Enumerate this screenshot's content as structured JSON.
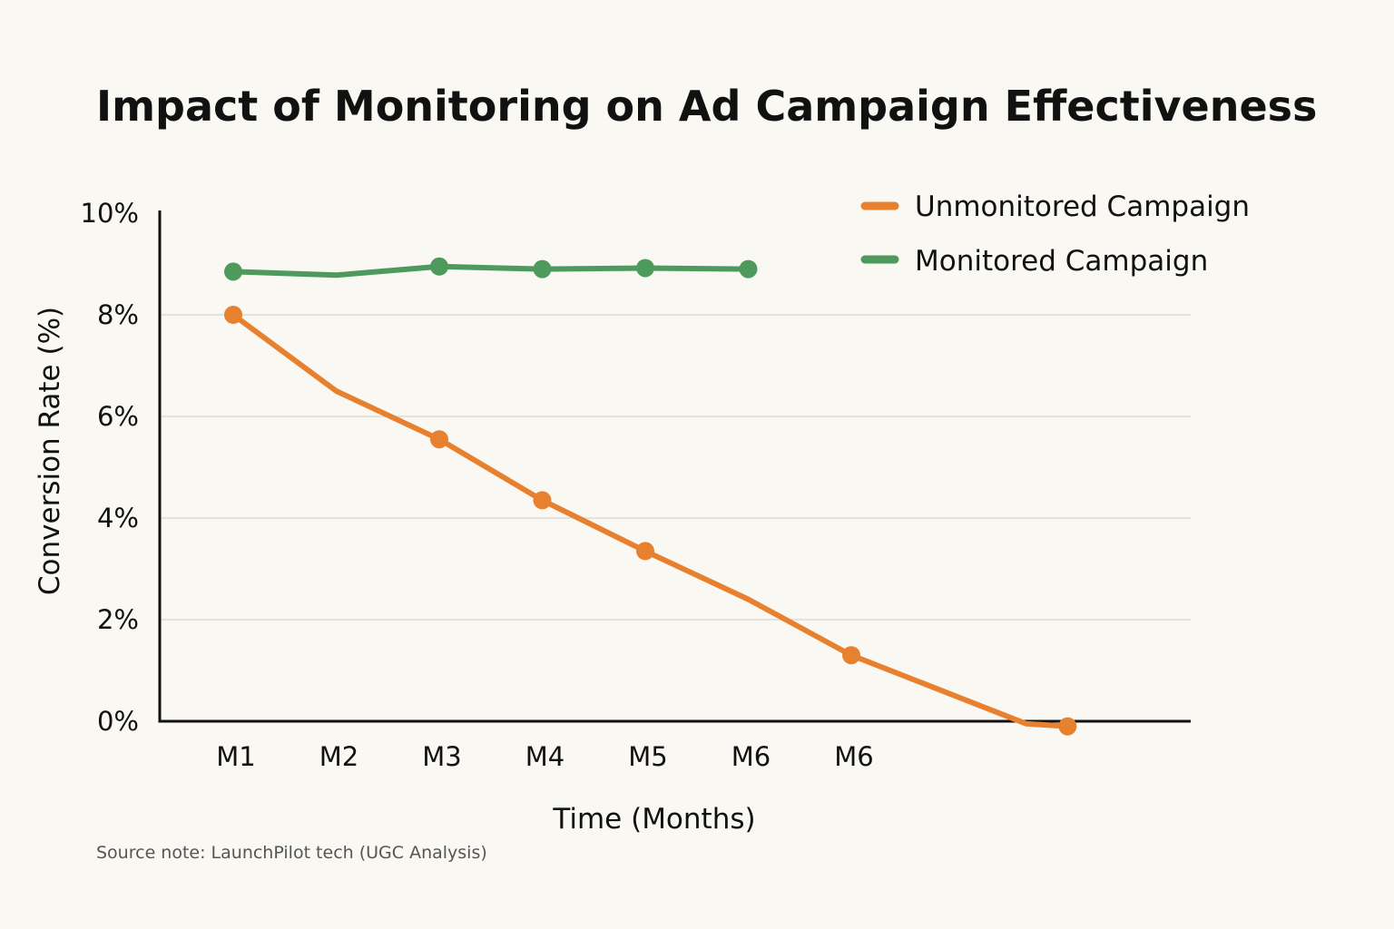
{
  "chart_data": {
    "type": "line",
    "title": "Impact of Monitoring on Ad Campaign Effectiveness",
    "xlabel": "Time (Months)",
    "ylabel": "Conversion Rate (%)",
    "ylim": [
      0,
      10
    ],
    "ytick_values": [
      0,
      2,
      4,
      6,
      8,
      10
    ],
    "ytick_labels": [
      "0%",
      "2%",
      "4%",
      "6%",
      "8%",
      "10%"
    ],
    "x_tick_labels": [
      "M1",
      "M2",
      "M3",
      "M4",
      "M5",
      "M6",
      "M6"
    ],
    "grid": true,
    "legend_position": "top-right",
    "series": [
      {
        "name": "Unmonitored Campaign",
        "color": "#e8812f",
        "points": [
          {
            "x": 1,
            "y": 8.0,
            "marker": true
          },
          {
            "x": 2,
            "y": 6.5,
            "marker": false
          },
          {
            "x": 3,
            "y": 5.55,
            "marker": true
          },
          {
            "x": 4,
            "y": 4.35,
            "marker": true
          },
          {
            "x": 5,
            "y": 3.35,
            "marker": true
          },
          {
            "x": 6,
            "y": 2.4,
            "marker": false
          },
          {
            "x": 7,
            "y": 1.3,
            "marker": true
          },
          {
            "x": 8.7,
            "y": -0.05,
            "marker": false
          },
          {
            "x": 9.1,
            "y": -0.1,
            "marker": true
          }
        ]
      },
      {
        "name": "Monitored Campaign",
        "color": "#4e9a5c",
        "points": [
          {
            "x": 1,
            "y": 8.85,
            "marker": true
          },
          {
            "x": 2,
            "y": 8.78,
            "marker": false
          },
          {
            "x": 3,
            "y": 8.95,
            "marker": true
          },
          {
            "x": 4,
            "y": 8.9,
            "marker": true
          },
          {
            "x": 5,
            "y": 8.92,
            "marker": true
          },
          {
            "x": 6,
            "y": 8.9,
            "marker": true
          }
        ]
      }
    ]
  },
  "source_note": "Source note: LaunchPilot tech (UGC Analysis)"
}
